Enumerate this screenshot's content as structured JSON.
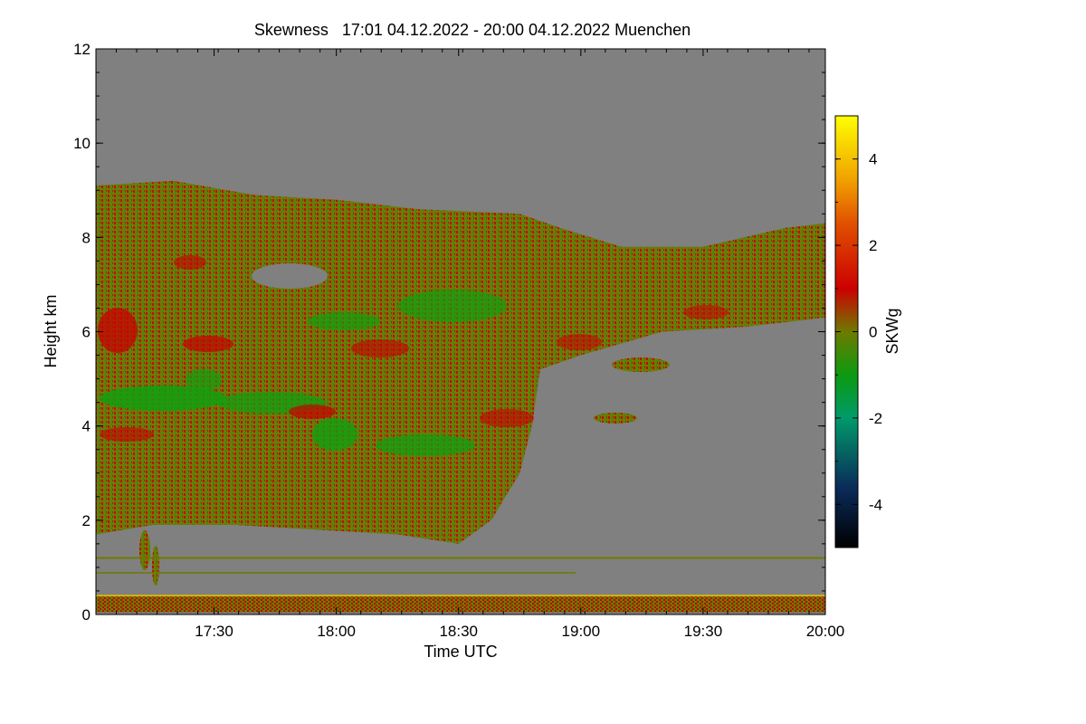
{
  "chart_data": {
    "type": "heatmap",
    "title": "Skewness   17:01 04.12.2022 - 20:00 04.12.2022 Muenchen",
    "xlabel": "Time UTC",
    "ylabel": "Height km",
    "colorbar_label": "SKWg",
    "x_range_minutes": [
      1021,
      1200
    ],
    "ylim": [
      0,
      12
    ],
    "clim": [
      -5,
      5
    ],
    "x_ticks": [
      {
        "minute": 1050,
        "label": "17:30"
      },
      {
        "minute": 1080,
        "label": "18:00"
      },
      {
        "minute": 1110,
        "label": "18:30"
      },
      {
        "minute": 1140,
        "label": "19:00"
      },
      {
        "minute": 1170,
        "label": "19:30"
      },
      {
        "minute": 1200,
        "label": "20:00"
      }
    ],
    "y_ticks": [
      {
        "value": 0,
        "label": "0"
      },
      {
        "value": 2,
        "label": "2"
      },
      {
        "value": 4,
        "label": "4"
      },
      {
        "value": 6,
        "label": "6"
      },
      {
        "value": 8,
        "label": "8"
      },
      {
        "value": 10,
        "label": "10"
      },
      {
        "value": 12,
        "label": "12"
      }
    ],
    "colorbar_ticks": [
      {
        "value": 4,
        "label": "4"
      },
      {
        "value": 2,
        "label": "2"
      },
      {
        "value": 0,
        "label": "0"
      },
      {
        "value": -2,
        "label": "-2"
      },
      {
        "value": -4,
        "label": "-4"
      }
    ],
    "colorscale": [
      {
        "value": -5,
        "color": "#000000"
      },
      {
        "value": -3.6,
        "color": "#0a2c5a"
      },
      {
        "value": -2,
        "color": "#009a6a"
      },
      {
        "value": -1,
        "color": "#0c9a10"
      },
      {
        "value": 0,
        "color": "#6e7a00"
      },
      {
        "value": 1,
        "color": "#cc0000"
      },
      {
        "value": 2.5,
        "color": "#e05000"
      },
      {
        "value": 3.5,
        "color": "#f0a000"
      },
      {
        "value": 5,
        "color": "#ffff00"
      }
    ],
    "no_data_color": "#808080",
    "signal_layers": [
      {
        "name": "cloud layer",
        "dominant_skewness": "0 (olive) with red and green streaks",
        "top_km_by_time": [
          {
            "minute": 1021,
            "km": 9.1
          },
          {
            "minute": 1040,
            "km": 9.2
          },
          {
            "minute": 1060,
            "km": 8.9
          },
          {
            "minute": 1080,
            "km": 8.8
          },
          {
            "minute": 1100,
            "km": 8.6
          },
          {
            "minute": 1125,
            "km": 8.5
          },
          {
            "minute": 1135,
            "km": 8.2
          },
          {
            "minute": 1150,
            "km": 7.8
          },
          {
            "minute": 1170,
            "km": 7.8
          },
          {
            "minute": 1190,
            "km": 8.2
          },
          {
            "minute": 1200,
            "km": 8.3
          }
        ],
        "base_km_by_time": [
          {
            "minute": 1021,
            "km": 1.7
          },
          {
            "minute": 1035,
            "km": 1.9
          },
          {
            "minute": 1055,
            "km": 1.9
          },
          {
            "minute": 1075,
            "km": 1.8
          },
          {
            "minute": 1095,
            "km": 1.7
          },
          {
            "minute": 1110,
            "km": 1.5
          },
          {
            "minute": 1118,
            "km": 2.0
          },
          {
            "minute": 1125,
            "km": 3.0
          },
          {
            "minute": 1128,
            "km": 4.0
          },
          {
            "minute": 1130,
            "km": 5.2
          },
          {
            "minute": 1140,
            "km": 5.5
          },
          {
            "minute": 1160,
            "km": 6.0
          },
          {
            "minute": 1180,
            "km": 6.1
          },
          {
            "minute": 1200,
            "km": 6.3
          }
        ]
      },
      {
        "name": "boundary layer",
        "dominant_skewness": "0 to 1 (olive/red)",
        "top_km": 0.4,
        "base_km": 0.05
      },
      {
        "name": "thin line",
        "dominant_skewness": "0 (olive)",
        "height_km": 1.2
      }
    ]
  }
}
